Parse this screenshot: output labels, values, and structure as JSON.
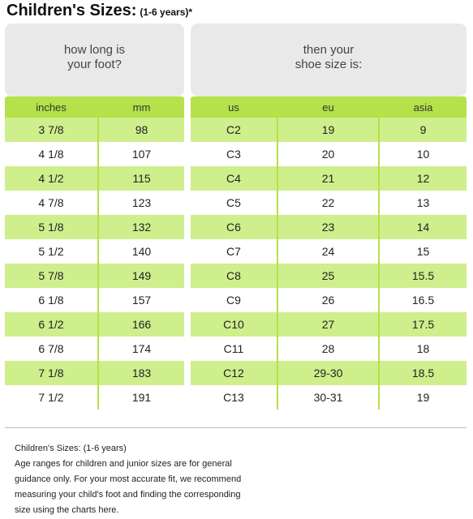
{
  "title": {
    "main": "Children's Sizes:",
    "sub": "(1-6 years)*"
  },
  "panels": {
    "left": {
      "line1": "how long is",
      "line2": "your foot?"
    },
    "right": {
      "line1": "then your",
      "line2": "shoe size is:"
    }
  },
  "columns": {
    "inches": "inches",
    "mm": "mm",
    "us": "us",
    "eu": "eu",
    "asia": "asia"
  },
  "rows": [
    {
      "inches": "3 7/8",
      "mm": "98",
      "us": "C2",
      "eu": "19",
      "asia": "9"
    },
    {
      "inches": "4 1/8",
      "mm": "107",
      "us": "C3",
      "eu": "20",
      "asia": "10"
    },
    {
      "inches": "4 1/2",
      "mm": "115",
      "us": "C4",
      "eu": "21",
      "asia": "12"
    },
    {
      "inches": "4 7/8",
      "mm": "123",
      "us": "C5",
      "eu": "22",
      "asia": "13"
    },
    {
      "inches": "5 1/8",
      "mm": "132",
      "us": "C6",
      "eu": "23",
      "asia": "14"
    },
    {
      "inches": "5 1/2",
      "mm": "140",
      "us": "C7",
      "eu": "24",
      "asia": "15"
    },
    {
      "inches": "5 7/8",
      "mm": "149",
      "us": "C8",
      "eu": "25",
      "asia": "15.5"
    },
    {
      "inches": "6 1/8",
      "mm": "157",
      "us": "C9",
      "eu": "26",
      "asia": "16.5"
    },
    {
      "inches": "6 1/2",
      "mm": "166",
      "us": "C10",
      "eu": "27",
      "asia": "17.5"
    },
    {
      "inches": "6 7/8",
      "mm": "174",
      "us": "C11",
      "eu": "28",
      "asia": "18"
    },
    {
      "inches": "7 1/8",
      "mm": "183",
      "us": "C12",
      "eu": "29-30",
      "asia": "18.5"
    },
    {
      "inches": "7 1/2",
      "mm": "191",
      "us": "C13",
      "eu": "30-31",
      "asia": "19"
    }
  ],
  "note": {
    "heading": "Children's Sizes: (1-6 years)",
    "line1": "Age ranges for children and junior sizes are for general",
    "line2": "guidance only. For your most accurate fit, we recommend",
    "line3": "measuring your child's foot and finding the corresponding",
    "line4": "size using the charts here."
  },
  "colors": {
    "header_green": "#b5e14a",
    "stripe_green": "#cfee8c",
    "panel_gray": "#e9e9e9"
  }
}
